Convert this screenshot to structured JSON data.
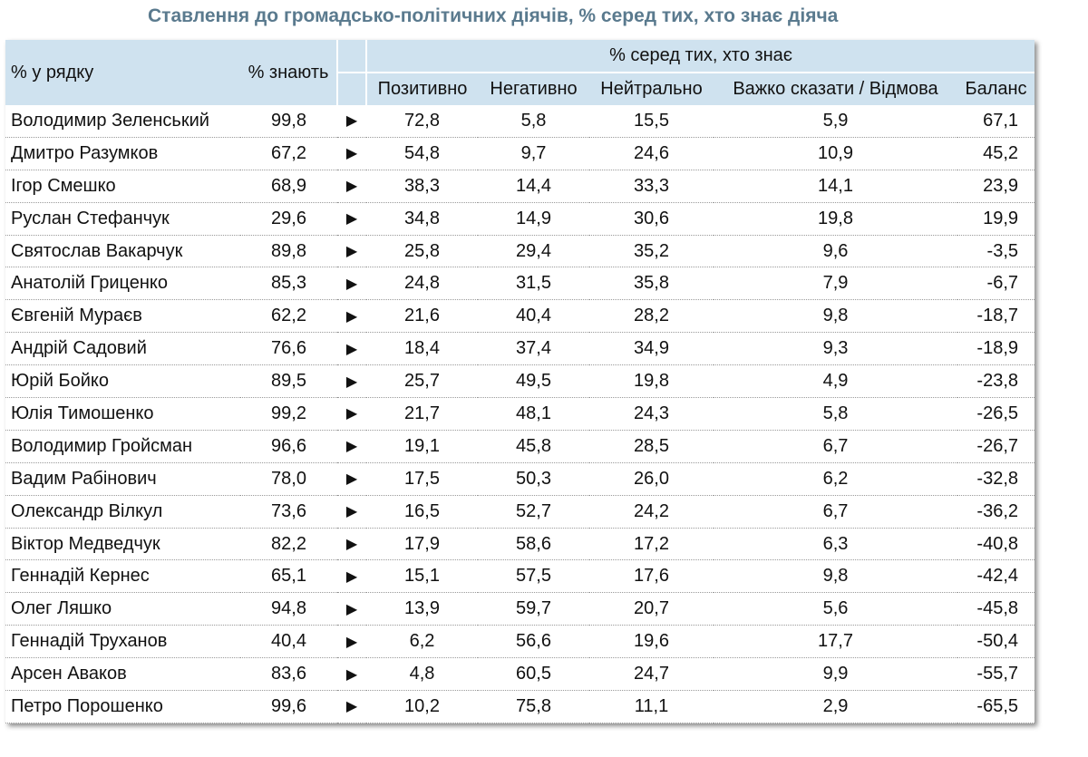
{
  "title": "Ставлення до громадсько-політичних діячів, % серед тих, хто знає діяча",
  "header": {
    "row_label": "% у рядку",
    "know_label": "% знають",
    "group_label": "% серед тих, хто знає",
    "columns": [
      "Позитивно",
      "Негативно",
      "Нейтрально",
      "Важко сказати / Відмова",
      "Баланс"
    ]
  },
  "arrow_glyph": "▶",
  "rows": [
    {
      "name": "Володимир Зеленський",
      "know": "99,8",
      "pos": "72,8",
      "neg": "5,8",
      "neu": "15,5",
      "hard": "5,9",
      "bal": "67,1"
    },
    {
      "name": "Дмитро Разумков",
      "know": "67,2",
      "pos": "54,8",
      "neg": "9,7",
      "neu": "24,6",
      "hard": "10,9",
      "bal": "45,2"
    },
    {
      "name": "Ігор Смешко",
      "know": "68,9",
      "pos": "38,3",
      "neg": "14,4",
      "neu": "33,3",
      "hard": "14,1",
      "bal": "23,9"
    },
    {
      "name": "Руслан Стефанчук",
      "know": "29,6",
      "pos": "34,8",
      "neg": "14,9",
      "neu": "30,6",
      "hard": "19,8",
      "bal": "19,9"
    },
    {
      "name": "Святослав Вакарчук",
      "know": "89,8",
      "pos": "25,8",
      "neg": "29,4",
      "neu": "35,2",
      "hard": "9,6",
      "bal": "-3,5"
    },
    {
      "name": "Анатолій Гриценко",
      "know": "85,3",
      "pos": "24,8",
      "neg": "31,5",
      "neu": "35,8",
      "hard": "7,9",
      "bal": "-6,7"
    },
    {
      "name": "Євгеній Мураєв",
      "know": "62,2",
      "pos": "21,6",
      "neg": "40,4",
      "neu": "28,2",
      "hard": "9,8",
      "bal": "-18,7"
    },
    {
      "name": "Андрій Садовий",
      "know": "76,6",
      "pos": "18,4",
      "neg": "37,4",
      "neu": "34,9",
      "hard": "9,3",
      "bal": "-18,9"
    },
    {
      "name": "Юрій Бойко",
      "know": "89,5",
      "pos": "25,7",
      "neg": "49,5",
      "neu": "19,8",
      "hard": "4,9",
      "bal": "-23,8"
    },
    {
      "name": "Юлія Тимошенко",
      "know": "99,2",
      "pos": "21,7",
      "neg": "48,1",
      "neu": "24,3",
      "hard": "5,8",
      "bal": "-26,5"
    },
    {
      "name": "Володимир Гройсман",
      "know": "96,6",
      "pos": "19,1",
      "neg": "45,8",
      "neu": "28,5",
      "hard": "6,7",
      "bal": "-26,7"
    },
    {
      "name": "Вадим Рабінович",
      "know": "78,0",
      "pos": "17,5",
      "neg": "50,3",
      "neu": "26,0",
      "hard": "6,2",
      "bal": "-32,8"
    },
    {
      "name": "Олександр Вілкул",
      "know": "73,6",
      "pos": "16,5",
      "neg": "52,7",
      "neu": "24,2",
      "hard": "6,7",
      "bal": "-36,2"
    },
    {
      "name": "Віктор Медведчук",
      "know": "82,2",
      "pos": "17,9",
      "neg": "58,6",
      "neu": "17,2",
      "hard": "6,3",
      "bal": "-40,8"
    },
    {
      "name": "Геннадій Кернес",
      "know": "65,1",
      "pos": "15,1",
      "neg": "57,5",
      "neu": "17,6",
      "hard": "9,8",
      "bal": "-42,4"
    },
    {
      "name": "Олег Ляшко",
      "know": "94,8",
      "pos": "13,9",
      "neg": "59,7",
      "neu": "20,7",
      "hard": "5,6",
      "bal": "-45,8"
    },
    {
      "name": "Геннадій Труханов",
      "know": "40,4",
      "pos": "6,2",
      "neg": "56,6",
      "neu": "19,6",
      "hard": "17,7",
      "bal": "-50,4"
    },
    {
      "name": "Арсен Аваков",
      "know": "83,6",
      "pos": "4,8",
      "neg": "60,5",
      "neu": "24,7",
      "hard": "9,9",
      "bal": "-55,7"
    },
    {
      "name": "Петро Порошенко",
      "know": "99,6",
      "pos": "10,2",
      "neg": "75,8",
      "neu": "11,1",
      "hard": "2,9",
      "bal": "-65,5"
    }
  ],
  "colors": {
    "title": "#5a7a8e",
    "header_bg": "#cfe2ef",
    "row_divider": "#9a9a9a"
  }
}
